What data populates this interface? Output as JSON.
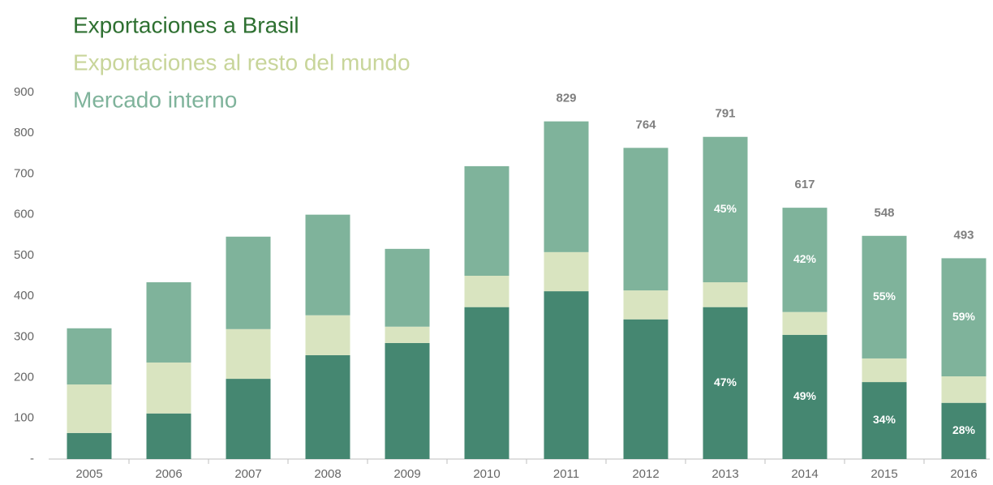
{
  "chart_data": {
    "type": "stacked_bar",
    "categories": [
      "2005",
      "2006",
      "2007",
      "2008",
      "2009",
      "2010",
      "2011",
      "2012",
      "2013",
      "2014",
      "2015",
      "2016"
    ],
    "series": [
      {
        "name": "Exportaciones a Brasil",
        "color": "#458771",
        "legend_color": "#2e7031",
        "values": [
          64,
          112,
          197,
          255,
          285,
          373,
          412,
          343,
          373,
          305,
          189,
          138
        ],
        "percent_labels": [
          null,
          null,
          null,
          null,
          null,
          null,
          null,
          null,
          "47%",
          "49%",
          "34%",
          "28%"
        ]
      },
      {
        "name": "Exportaciones al resto del mundo",
        "color": "#d9e4c0",
        "legend_color": "#c8d59a",
        "values": [
          119,
          125,
          122,
          98,
          40,
          77,
          96,
          71,
          61,
          56,
          58,
          65
        ]
      },
      {
        "name": "Mercado interno",
        "color": "#7fb39b",
        "legend_color": "#7fb39b",
        "values": [
          138,
          197,
          227,
          247,
          191,
          269,
          321,
          350,
          357,
          256,
          301,
          290
        ],
        "percent_labels": [
          null,
          null,
          null,
          null,
          null,
          null,
          null,
          null,
          "45%",
          "42%",
          "55%",
          "59%"
        ]
      }
    ],
    "totals": [
      null,
      null,
      null,
      null,
      null,
      null,
      829,
      764,
      791,
      617,
      548,
      493
    ],
    "ylim": [
      0,
      900
    ],
    "yticks": [
      {
        "value": 0,
        "label": "-"
      },
      100,
      200,
      300,
      400,
      500,
      600,
      700,
      800,
      900
    ]
  }
}
